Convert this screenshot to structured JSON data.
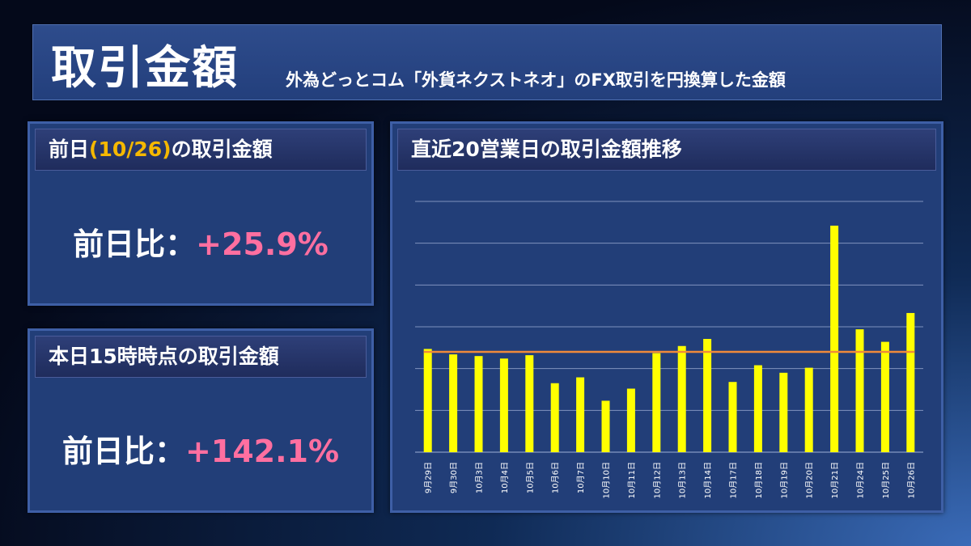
{
  "header": {
    "title": "取引金額",
    "subtitle": "外為どっとコム「外貨ネクストネオ」のFX取引を円換算した金額"
  },
  "panel1": {
    "head_prefix": "前日",
    "head_date": "(10/26)",
    "head_suffix": "の取引金額",
    "label": "前日比：",
    "value": "+25.9%"
  },
  "panel2": {
    "head": "本日15時時点の取引金額",
    "label": "前日比：",
    "value": "+142.1%"
  },
  "panel3": {
    "head": "直近20営業日の取引金額推移"
  },
  "colors": {
    "bar": "#ffff00",
    "average_line": "#f08a3a",
    "accent_date": "#f5b800",
    "ratio_value": "#ff6fa0"
  },
  "chart_data": {
    "type": "bar",
    "categories": [
      "9月29日",
      "9月30日",
      "10月3日",
      "10月4日",
      "10月5日",
      "10月6日",
      "10月7日",
      "10月10日",
      "10月11日",
      "10月12日",
      "10月13日",
      "10月14日",
      "10月17日",
      "10月18日",
      "10月19日",
      "10月20日",
      "10月21日",
      "10月24日",
      "10月25日",
      "10月26日"
    ],
    "values": [
      2.47,
      2.34,
      2.3,
      2.24,
      2.32,
      1.65,
      1.79,
      1.23,
      1.52,
      2.37,
      2.54,
      2.71,
      1.68,
      2.08,
      1.9,
      2.02,
      5.42,
      2.94,
      2.64,
      3.33
    ],
    "average": 2.4,
    "ylim": [
      0,
      6
    ],
    "gridlines": true,
    "title": "",
    "xlabel": "",
    "ylabel": ""
  }
}
